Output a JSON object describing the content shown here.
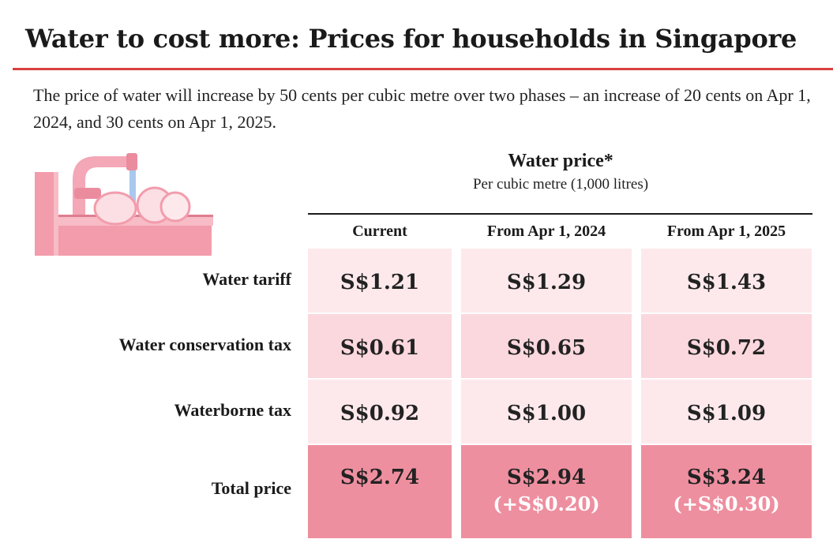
{
  "title": "Water to cost more: Prices for households in Singapore",
  "subtitle": "The price of water will increase by 50 cents per cubic metre over two phases – an increase of 20 cents on Apr 1, 2024, and 30 cents on Apr 1, 2025.",
  "illustration": {
    "icon": "kitchen-sink-icon"
  },
  "colors": {
    "title_rule": "#d9403f",
    "row_light": "#fde9ec",
    "row_mid": "#fbd7de",
    "row_total": "#ee8fa0",
    "delta_text": "#ffffff"
  },
  "chart_data": {
    "type": "table",
    "header": "Water price*",
    "subheader": "Per cubic metre (1,000 litres)",
    "columns": [
      "Current",
      "From Apr 1, 2024",
      "From Apr 1, 2025"
    ],
    "rows": [
      {
        "label": "Water tariff",
        "values": [
          "S$1.21",
          "S$1.29",
          "S$1.43"
        ]
      },
      {
        "label": "Water conservation tax",
        "values": [
          "S$0.61",
          "S$0.65",
          "S$0.72"
        ]
      },
      {
        "label": "Waterborne tax",
        "values": [
          "S$0.92",
          "S$1.00",
          "S$1.09"
        ]
      },
      {
        "label": "Total price",
        "values": [
          "S$2.74",
          "S$2.94",
          "S$3.24"
        ],
        "changes": [
          "",
          "(+S$0.20)",
          "(+S$0.30)"
        ]
      }
    ]
  }
}
